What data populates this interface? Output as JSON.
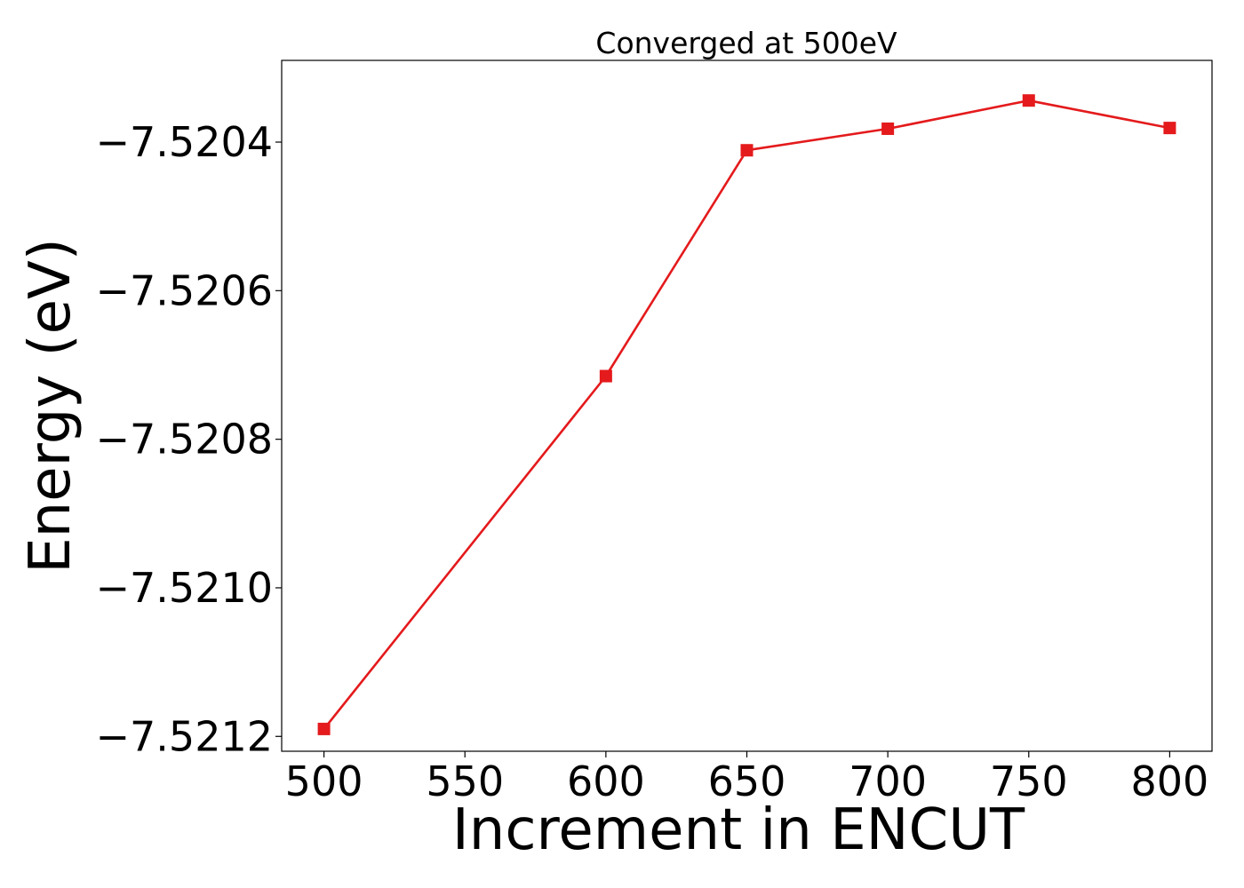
{
  "chart_data": {
    "type": "line",
    "title": "Converged at 500eV",
    "xlabel": "Increment in ENCUT",
    "ylabel": "Energy (eV)",
    "xlim": [
      485,
      815
    ],
    "ylim": [
      -7.52122,
      -7.52029
    ],
    "x_ticks": [
      500,
      550,
      600,
      650,
      700,
      750,
      800
    ],
    "x_tick_labels": [
      "500",
      "550",
      "600",
      "650",
      "700",
      "750",
      "800"
    ],
    "y_ticks": [
      -7.5212,
      -7.521,
      -7.5208,
      -7.5206,
      -7.5204
    ],
    "y_tick_labels": [
      "−7.5212",
      "−7.5210",
      "−7.5208",
      "−7.5206",
      "−7.5204"
    ],
    "grid": false,
    "series": [
      {
        "color": "#e41a1c",
        "marker": "square",
        "x": [
          500,
          600,
          650,
          700,
          750,
          800
        ],
        "y": [
          -7.52119,
          -7.520715,
          -7.520411,
          -7.520382,
          -7.520344,
          -7.520381
        ]
      }
    ]
  }
}
